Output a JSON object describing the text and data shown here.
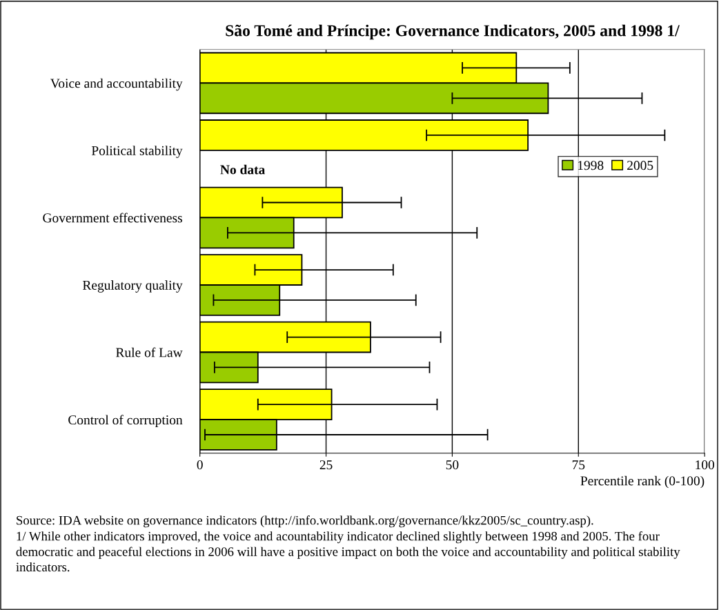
{
  "chart_data": {
    "type": "bar",
    "orientation": "horizontal",
    "title": "São Tomé and Príncipe: Governance Indicators, 2005 and 1998 1/",
    "xlabel": "Percentile rank (0-100)",
    "categories": [
      "Voice and accountability",
      "Political stability",
      "Government effectiveness",
      "Regulatory quality",
      "Rule of Law",
      "Control of corruption"
    ],
    "series": [
      {
        "name": "2005",
        "color": "#ffff00",
        "values": [
          62.7,
          65.0,
          28.2,
          20.2,
          33.8,
          26.1
        ],
        "errors": [
          [
            52.0,
            73.3
          ],
          [
            44.9,
            92.1
          ],
          [
            12.4,
            39.9
          ],
          [
            10.9,
            38.3
          ],
          [
            17.3,
            47.7
          ],
          [
            11.5,
            47.0
          ]
        ]
      },
      {
        "name": "1998",
        "color": "#99cc00",
        "values": [
          69.0,
          null,
          18.6,
          15.8,
          11.5,
          15.2
        ],
        "errors": [
          [
            50.0,
            87.6
          ],
          null,
          [
            5.5,
            54.9
          ],
          [
            2.7,
            42.8
          ],
          [
            2.9,
            45.5
          ],
          [
            1.0,
            57.0
          ]
        ]
      }
    ],
    "xlim": [
      0,
      100
    ],
    "xticks": [
      0,
      25,
      50,
      75,
      100
    ],
    "grid": "x",
    "legend": "right",
    "annotations": [
      {
        "text": "No data",
        "x": 0,
        "y": "Political stability"
      },
      "Source: IDA website on governance indicators (http://info.worldbank.org/governance/kkz2005/sc_country.asp).",
      "1/ While other indicators improved, the voice and acountability indicator declined slightly between 1998 and 2005. The four democratic and peaceful elections in 2006 will have a positive impact on both the voice and accountability and political stability indicators."
    ]
  }
}
